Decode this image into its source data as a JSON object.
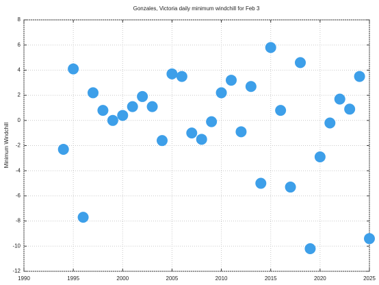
{
  "chart_data": {
    "type": "scatter",
    "title": "Gonzales, Victoria daily minimum windchill for Feb 3",
    "y_label": "Minimum Windchill",
    "x": [
      1994,
      1995,
      1996,
      1997,
      1998,
      1999,
      2000,
      2001,
      2002,
      2003,
      2004,
      2005,
      2006,
      2007,
      2008,
      2009,
      2010,
      2011,
      2012,
      2013,
      2014,
      2015,
      2016,
      2017,
      2018,
      2019,
      2020,
      2021,
      2022,
      2023,
      2024,
      2025
    ],
    "values": [
      -2.3,
      4.1,
      -7.7,
      2.2,
      0.8,
      0.0,
      0.4,
      1.1,
      1.9,
      1.1,
      -1.6,
      3.7,
      3.5,
      -1.0,
      -1.5,
      -0.1,
      2.2,
      3.2,
      -0.9,
      2.7,
      -5.0,
      5.8,
      0.8,
      -5.3,
      4.6,
      -10.2,
      -2.9,
      -0.2,
      1.7,
      0.9,
      3.5,
      -9.4
    ],
    "color": "#3d9fe9",
    "xlim": [
      1990,
      2025
    ],
    "xticks": [
      1990,
      1995,
      2000,
      2005,
      2010,
      2015,
      2020,
      2025
    ],
    "ylim": [
      -12,
      8
    ],
    "yticks": [
      -12,
      -10,
      -8,
      -6,
      -4,
      -2,
      0,
      2,
      4,
      6,
      8
    ],
    "grid": true
  }
}
